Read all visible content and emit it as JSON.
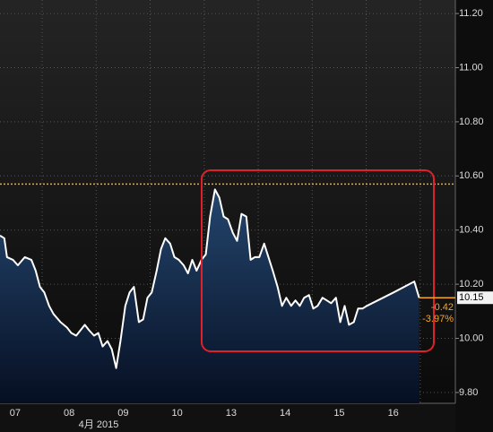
{
  "chart_data": {
    "type": "area-line",
    "x": [
      0.22,
      0.3,
      0.35,
      0.46,
      0.55,
      0.68,
      0.8,
      0.88,
      0.96,
      1.04,
      1.13,
      1.21,
      1.34,
      1.46,
      1.54,
      1.63,
      1.71,
      1.79,
      1.87,
      1.96,
      2.04,
      2.12,
      2.21,
      2.29,
      2.37,
      2.45,
      2.54,
      2.62,
      2.7,
      2.79,
      2.87,
      2.95,
      3.03,
      3.12,
      3.2,
      3.28,
      3.37,
      3.45,
      3.53,
      3.62,
      3.7,
      3.78,
      3.86,
      3.95,
      4.03,
      4.11,
      4.2,
      4.28,
      4.36,
      4.44,
      4.53,
      4.61,
      4.69,
      4.78,
      4.86,
      4.94,
      5.02,
      5.11,
      5.19,
      5.27,
      5.36,
      5.44,
      5.52,
      5.61,
      5.69,
      5.77,
      5.85,
      5.94,
      6.02,
      6.1,
      6.19,
      6.27,
      6.35,
      6.44,
      6.52,
      6.6,
      6.68,
      6.77,
      6.85,
      6.93,
      7.01,
      7.51,
      7.89,
      7.98
    ],
    "values": [
      10.38,
      10.37,
      10.3,
      10.29,
      10.27,
      10.3,
      10.29,
      10.25,
      10.19,
      10.17,
      10.12,
      10.09,
      10.06,
      10.04,
      10.02,
      10.01,
      10.03,
      10.05,
      10.03,
      10.01,
      10.02,
      9.97,
      9.99,
      9.96,
      9.89,
      9.99,
      10.12,
      10.17,
      10.19,
      10.06,
      10.07,
      10.15,
      10.17,
      10.25,
      10.33,
      10.37,
      10.35,
      10.3,
      10.29,
      10.27,
      10.24,
      10.29,
      10.25,
      10.29,
      10.31,
      10.45,
      10.55,
      10.52,
      10.45,
      10.44,
      10.39,
      10.36,
      10.46,
      10.45,
      10.29,
      10.3,
      10.3,
      10.35,
      10.3,
      10.25,
      10.19,
      10.12,
      10.15,
      10.12,
      10.14,
      10.12,
      10.15,
      10.16,
      10.11,
      10.12,
      10.15,
      10.14,
      10.13,
      10.15,
      10.06,
      10.12,
      10.05,
      10.06,
      10.11,
      10.11,
      10.12,
      10.17,
      10.21,
      10.15
    ],
    "color": "#ffffff",
    "xlim": [
      0.22,
      8.65
    ],
    "ylim": [
      9.76,
      11.25
    ],
    "xticks": [
      {
        "value": 0.5,
        "label": "07"
      },
      {
        "value": 1.5,
        "label": "08"
      },
      {
        "value": 2.5,
        "label": "09"
      },
      {
        "value": 3.5,
        "label": "10"
      },
      {
        "value": 4.5,
        "label": "13"
      },
      {
        "value": 5.5,
        "label": "14"
      },
      {
        "value": 6.5,
        "label": "15"
      },
      {
        "value": 7.5,
        "label": "16"
      }
    ],
    "x_gridlines": [
      1,
      2,
      3,
      4,
      5,
      6,
      7,
      8
    ],
    "month_label": "4月 2015",
    "yticks": [
      {
        "value": 9.8,
        "label": "9.80"
      },
      {
        "value": 10.0,
        "label": "10.00"
      },
      {
        "value": 10.2,
        "label": "10.20"
      },
      {
        "value": 10.4,
        "label": "10.40"
      },
      {
        "value": 10.6,
        "label": "10.60"
      },
      {
        "value": 10.8,
        "label": "10.80"
      },
      {
        "value": 11.0,
        "label": "11.00"
      },
      {
        "value": 11.2,
        "label": "11.20"
      }
    ],
    "reference_value": 10.57,
    "reference_color": "#f5a623",
    "last_value": {
      "value": 10.15,
      "label": "10.15"
    },
    "change": "-0.42",
    "change_pct": "-3.97%",
    "grid": true
  }
}
